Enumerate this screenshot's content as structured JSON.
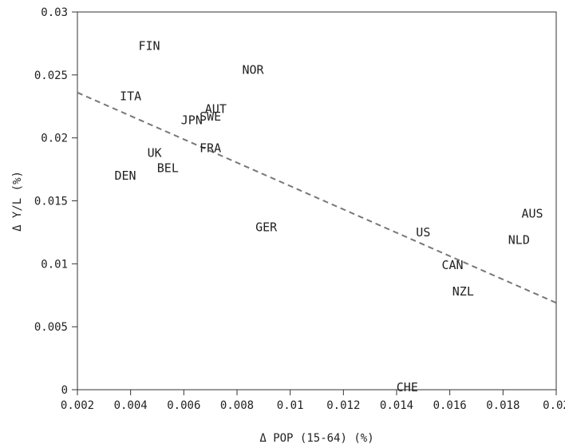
{
  "chart_data": {
    "type": "scatter",
    "title": "",
    "xlabel": "Δ POP (15-64) (%)",
    "ylabel": "Δ Y/L (%)",
    "xlim": [
      0.002,
      0.02
    ],
    "ylim": [
      0,
      0.03
    ],
    "x_ticks": [
      "0.002",
      "0.004",
      "0.006",
      "0.008",
      "0.01",
      "0.012",
      "0.014",
      "0.016",
      "0.018",
      "0.02"
    ],
    "y_ticks": [
      "0",
      "0.005",
      "0.01",
      "0.015",
      "0.02",
      "0.025",
      "0.03"
    ],
    "grid": false,
    "points": [
      {
        "label": "FIN",
        "x": 0.0047,
        "y": 0.0273
      },
      {
        "label": "NOR",
        "x": 0.0086,
        "y": 0.0254
      },
      {
        "label": "ITA",
        "x": 0.004,
        "y": 0.0233
      },
      {
        "label": "AUT",
        "x": 0.0072,
        "y": 0.0223
      },
      {
        "label": "SWE",
        "x": 0.007,
        "y": 0.0217
      },
      {
        "label": "JPN",
        "x": 0.0063,
        "y": 0.0214
      },
      {
        "label": "FRA",
        "x": 0.007,
        "y": 0.0192
      },
      {
        "label": "UK",
        "x": 0.0049,
        "y": 0.0188
      },
      {
        "label": "BEL",
        "x": 0.0054,
        "y": 0.0176
      },
      {
        "label": "DEN",
        "x": 0.0038,
        "y": 0.017
      },
      {
        "label": "GER",
        "x": 0.0091,
        "y": 0.0129
      },
      {
        "label": "US",
        "x": 0.015,
        "y": 0.0125
      },
      {
        "label": "AUS",
        "x": 0.0191,
        "y": 0.014
      },
      {
        "label": "NLD",
        "x": 0.0186,
        "y": 0.0119
      },
      {
        "label": "CAN",
        "x": 0.0161,
        "y": 0.0099
      },
      {
        "label": "NZL",
        "x": 0.0165,
        "y": 0.0078
      },
      {
        "label": "CHE",
        "x": 0.0144,
        "y": 0.0002
      }
    ],
    "trendline": {
      "style": "dashed",
      "color": "#777777",
      "x": [
        0.002,
        0.02
      ],
      "y": [
        0.0236,
        0.0069
      ]
    }
  }
}
